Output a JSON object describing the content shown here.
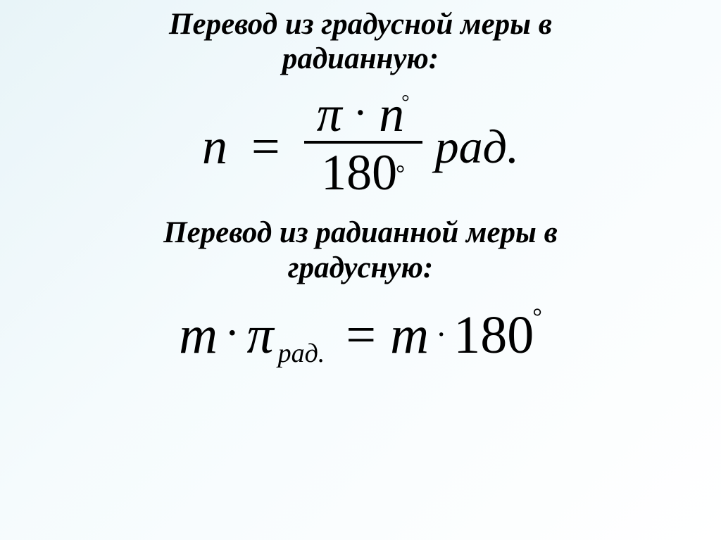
{
  "background_gradient": {
    "from": "#e8f4f8",
    "mid": "#f5fbfd",
    "to": "#ffffff"
  },
  "text_color": "#000000",
  "heading1": {
    "line1": "Перевод из градусной меры в",
    "line2": "радианную:",
    "fontsize_pt": 43,
    "italic": true,
    "bold": true
  },
  "formula1": {
    "lhs": "n",
    "eq": "=",
    "numerator_pi": "π",
    "numerator_dot": "·",
    "numerator_n": "n",
    "numerator_n_sup": "°",
    "denominator": "180",
    "denominator_sup": "°",
    "unit": "рад.",
    "fontsize_pt": 72,
    "italic": true
  },
  "heading2": {
    "line1": "Перевод из радианной меры в",
    "line2": "градусную:",
    "fontsize_pt": 43,
    "italic": true,
    "bold": true
  },
  "formula2": {
    "m1": "m",
    "dot1": "·",
    "pi": "π",
    "sub": "рад.",
    "eq": "=",
    "m2": "m",
    "dot2": "·",
    "val": "180",
    "val_sup": "°",
    "fontsize_pt": 76,
    "italic": true
  }
}
